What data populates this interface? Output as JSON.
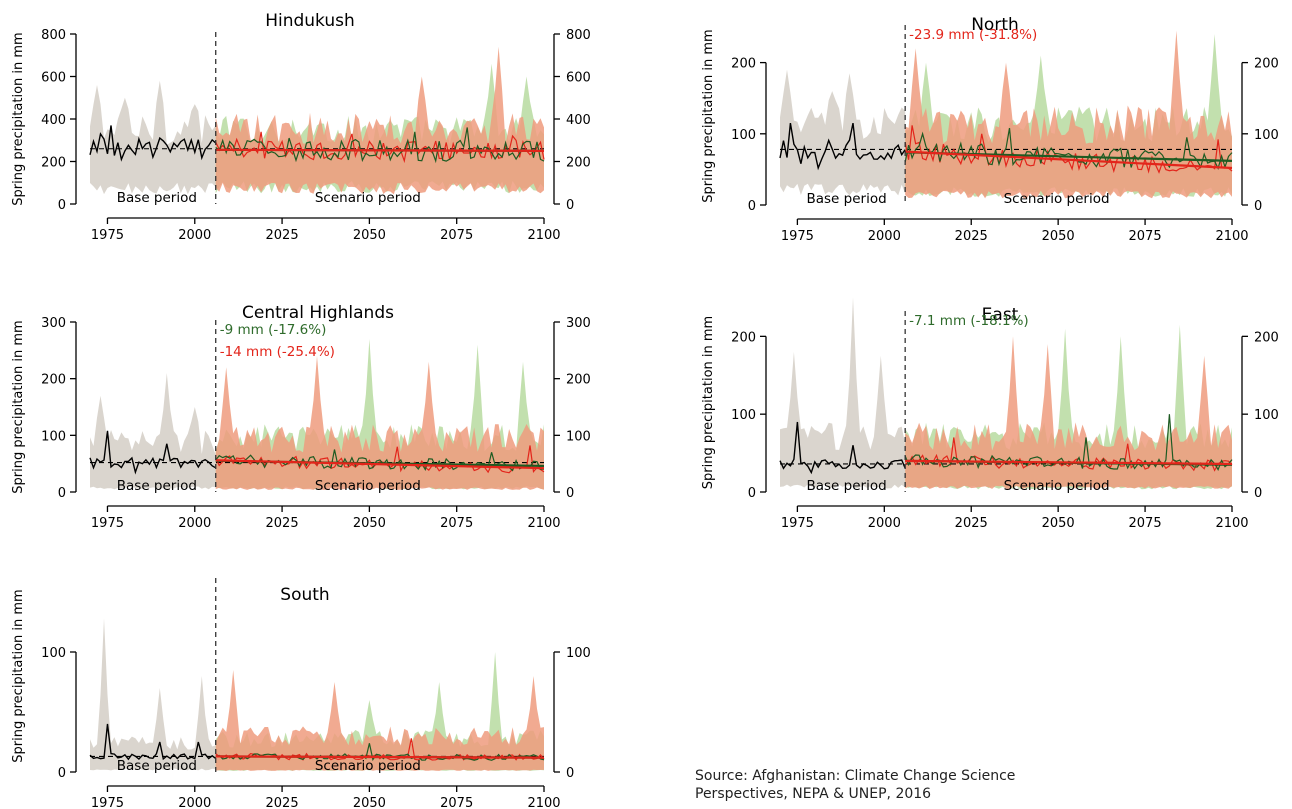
{
  "source": "Source: Afghanistan: Climate Change Science Perspectives, NEPA & UNEP, 2016",
  "colors": {
    "base_band": "#d3cec6",
    "rcp45_band": "#b7dba0",
    "rcp85_band": "#ee9b7e",
    "overlap_band": "#c5926a",
    "observed_line": "#000000",
    "rcp45_line": "#1e5b22",
    "rcp85_line": "#e3251b",
    "annotation_green": "#2e6b2b",
    "annotation_red": "#e3251b"
  },
  "chart_data": [
    {
      "type": "line",
      "title": "Hindukush",
      "ylabel": "Spring precipitation in mm",
      "xlim": [
        1970,
        2100
      ],
      "ylim": [
        0,
        800
      ],
      "xticks": [
        1975,
        2000,
        2025,
        2050,
        2075,
        2100
      ],
      "yticks": [
        0,
        200,
        400,
        600,
        800
      ],
      "split_year": 2006,
      "base_label": "Base period",
      "scenario_label": "Scenario period",
      "annotations": [],
      "base_band": {
        "min": 100,
        "max": 420,
        "peaks": [
          [
            1972,
            560
          ],
          [
            1980,
            500
          ],
          [
            1990,
            580
          ],
          [
            2000,
            470
          ]
        ]
      },
      "rcp45_band": {
        "min": 110,
        "max": 420,
        "peaks": [
          [
            2085,
            660
          ],
          [
            2095,
            600
          ]
        ]
      },
      "rcp85_band": {
        "min": 100,
        "max": 430,
        "peaks": [
          [
            2087,
            740
          ],
          [
            2065,
            600
          ]
        ]
      },
      "observed": {
        "mean": 260,
        "spikes": [
          [
            1973,
            330
          ],
          [
            1976,
            370
          ],
          [
            1979,
            210
          ],
          [
            1990,
            310
          ]
        ]
      },
      "rcp45": {
        "start": 255,
        "end": 250,
        "spikes": [
          [
            2027,
            310
          ],
          [
            2063,
            340
          ],
          [
            2078,
            360
          ]
        ]
      },
      "rcp85": {
        "start": 255,
        "end": 250,
        "spikes": [
          [
            2019,
            340
          ],
          [
            2045,
            330
          ],
          [
            2091,
            320
          ]
        ]
      },
      "trend_start": 255,
      "trend_end": 250
    },
    {
      "type": "line",
      "title": "North",
      "ylabel": "Spring precipitation in mm",
      "xlim": [
        1970,
        2100
      ],
      "ylim": [
        0,
        250
      ],
      "xticks": [
        1975,
        2000,
        2025,
        2050,
        2075,
        2100
      ],
      "yticks": [
        0,
        100,
        200
      ],
      "split_year": 2006,
      "base_label": "Base period",
      "scenario_label": "Scenario period",
      "annotations": [
        {
          "text": "-23.9 mm (-31.8%)",
          "color": "red"
        }
      ],
      "base_band": {
        "min": 30,
        "max": 140,
        "peaks": [
          [
            1972,
            190
          ],
          [
            1990,
            185
          ],
          [
            1985,
            160
          ]
        ]
      },
      "rcp45_band": {
        "min": 25,
        "max": 140,
        "peaks": [
          [
            2012,
            200
          ],
          [
            2045,
            210
          ],
          [
            2095,
            240
          ]
        ]
      },
      "rcp85_band": {
        "min": 20,
        "max": 140,
        "peaks": [
          [
            2009,
            220
          ],
          [
            2035,
            200
          ],
          [
            2084,
            245
          ]
        ]
      },
      "observed": {
        "mean": 78,
        "spikes": [
          [
            1973,
            115
          ],
          [
            1976,
            58
          ],
          [
            1991,
            115
          ],
          [
            1981,
            52
          ]
        ]
      },
      "rcp45": {
        "start": 74,
        "end": 62,
        "spikes": [
          [
            2011,
            100
          ],
          [
            2036,
            108
          ],
          [
            2087,
            95
          ]
        ]
      },
      "rcp85": {
        "start": 75,
        "end": 50,
        "spikes": [
          [
            2008,
            112
          ],
          [
            2028,
            100
          ],
          [
            2096,
            92
          ]
        ]
      },
      "trend_start": 75,
      "trend_end": 52
    },
    {
      "type": "line",
      "title": "Central Highlands",
      "ylabel": "Spring precipitation in mm",
      "xlim": [
        1970,
        2100
      ],
      "ylim": [
        0,
        300
      ],
      "xticks": [
        1975,
        2000,
        2025,
        2050,
        2075,
        2100
      ],
      "yticks": [
        0,
        100,
        200,
        300
      ],
      "split_year": 2006,
      "base_label": "Base period",
      "scenario_label": "Scenario period",
      "annotations": [
        {
          "text": "-9 mm (-17.6%)",
          "color": "green"
        },
        {
          "text": "-14 mm (-25.4%)",
          "color": "red"
        }
      ],
      "base_band": {
        "min": 10,
        "max": 110,
        "peaks": [
          [
            1973,
            170
          ],
          [
            1992,
            210
          ],
          [
            2000,
            150
          ]
        ]
      },
      "rcp45_band": {
        "min": 10,
        "max": 120,
        "peaks": [
          [
            2050,
            270
          ],
          [
            2081,
            260
          ],
          [
            2094,
            230
          ]
        ]
      },
      "rcp85_band": {
        "min": 8,
        "max": 120,
        "peaks": [
          [
            2009,
            220
          ],
          [
            2035,
            240
          ],
          [
            2067,
            230
          ]
        ]
      },
      "observed": {
        "mean": 52,
        "spikes": [
          [
            1975,
            108
          ],
          [
            1992,
            85
          ],
          [
            1983,
            35
          ]
        ]
      },
      "rcp45": {
        "start": 55,
        "end": 46,
        "spikes": [
          [
            2040,
            75
          ],
          [
            2085,
            70
          ]
        ]
      },
      "rcp85": {
        "start": 56,
        "end": 40,
        "spikes": [
          [
            2058,
            80
          ],
          [
            2096,
            82
          ]
        ]
      },
      "trend_start": 56,
      "trend_end": 42
    },
    {
      "type": "line",
      "title": "East",
      "ylabel": "Spring precipitation in mm",
      "xlim": [
        1970,
        2100
      ],
      "ylim": [
        0,
        230
      ],
      "xticks": [
        1975,
        2000,
        2025,
        2050,
        2075,
        2100
      ],
      "yticks": [
        0,
        100,
        200
      ],
      "split_year": 2006,
      "base_label": "Base period",
      "scenario_label": "Scenario period",
      "annotations": [
        {
          "text": "-7.1 mm (-18.1%)",
          "color": "green"
        }
      ],
      "base_band": {
        "min": 10,
        "max": 90,
        "peaks": [
          [
            1974,
            180
          ],
          [
            1991,
            250
          ],
          [
            1999,
            175
          ]
        ]
      },
      "rcp45_band": {
        "min": 8,
        "max": 90,
        "peaks": [
          [
            2052,
            210
          ],
          [
            2068,
            200
          ],
          [
            2085,
            215
          ]
        ]
      },
      "rcp85_band": {
        "min": 8,
        "max": 90,
        "peaks": [
          [
            2037,
            200
          ],
          [
            2047,
            190
          ],
          [
            2092,
            175
          ]
        ]
      },
      "observed": {
        "mean": 36,
        "spikes": [
          [
            1975,
            90
          ],
          [
            1991,
            60
          ],
          [
            1979,
            25
          ]
        ]
      },
      "rcp45": {
        "start": 40,
        "end": 35,
        "spikes": [
          [
            2082,
            100
          ],
          [
            2058,
            70
          ]
        ]
      },
      "rcp85": {
        "start": 40,
        "end": 34,
        "spikes": [
          [
            2020,
            70
          ],
          [
            2070,
            62
          ]
        ]
      },
      "trend_start": 40,
      "trend_end": 36
    },
    {
      "type": "line",
      "title": "South",
      "ylabel": "Spring precipitation in mm",
      "xlim": [
        1970,
        2100
      ],
      "ylim": [
        0,
        160
      ],
      "xticks": [
        1975,
        2000,
        2025,
        2050,
        2075,
        2100
      ],
      "yticks": [
        0,
        100
      ],
      "split_year": 2006,
      "base_label": "Base period",
      "scenario_label": "Scenario period",
      "annotations": [],
      "base_band": {
        "min": 3,
        "max": 30,
        "peaks": [
          [
            1974,
            128
          ],
          [
            1990,
            70
          ],
          [
            2002,
            80
          ]
        ]
      },
      "rcp45_band": {
        "min": 2,
        "max": 35,
        "peaks": [
          [
            2070,
            75
          ],
          [
            2086,
            100
          ],
          [
            2050,
            60
          ]
        ]
      },
      "rcp85_band": {
        "min": 2,
        "max": 38,
        "peaks": [
          [
            2011,
            85
          ],
          [
            2040,
            75
          ],
          [
            2097,
            80
          ]
        ]
      },
      "observed": {
        "mean": 13,
        "spikes": [
          [
            1975,
            40
          ],
          [
            1990,
            25
          ],
          [
            2001,
            25
          ]
        ]
      },
      "rcp45": {
        "start": 13,
        "end": 12,
        "spikes": [
          [
            2050,
            24
          ]
        ]
      },
      "rcp85": {
        "start": 13,
        "end": 12,
        "spikes": [
          [
            2062,
            28
          ]
        ]
      },
      "trend_start": 13,
      "trend_end": 12
    }
  ]
}
